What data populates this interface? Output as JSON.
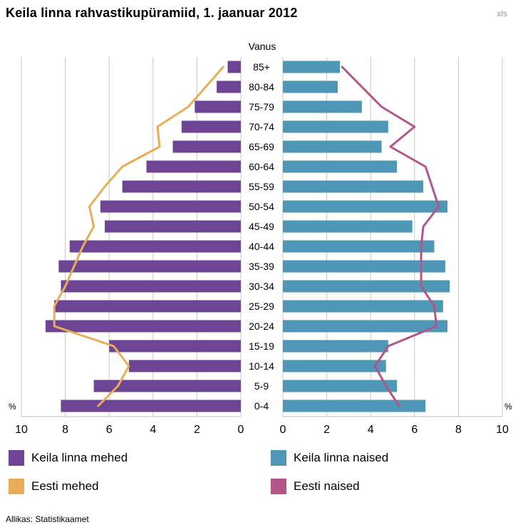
{
  "title": "Keila linna rahvastikupüramiid, 1. jaanuar 2012",
  "download_label": "xls",
  "source": "Allikas: Statistikaamet",
  "chart_data": {
    "type": "population-pyramid",
    "center_label": "Vanus",
    "unit_label": "%",
    "x_ticks": [
      10,
      8,
      6,
      4,
      2,
      0
    ],
    "xlim": [
      0,
      10
    ],
    "grid": true,
    "age_groups": [
      "85+",
      "80-84",
      "75-79",
      "70-74",
      "65-69",
      "60-64",
      "55-59",
      "50-54",
      "45-49",
      "40-44",
      "35-39",
      "30-34",
      "25-29",
      "20-24",
      "15-19",
      "10-14",
      "5-9",
      "0-4"
    ],
    "series": [
      {
        "name": "Keila linna mehed",
        "kind": "bar",
        "side": "left",
        "color": "#6e4595",
        "values": [
          0.6,
          1.1,
          2.1,
          2.7,
          3.1,
          4.3,
          5.4,
          6.4,
          6.2,
          7.8,
          8.3,
          8.2,
          8.5,
          8.9,
          6.0,
          5.1,
          6.7,
          8.2
        ]
      },
      {
        "name": "Keila linna naised",
        "kind": "bar",
        "side": "right",
        "color": "#4f97b6",
        "values": [
          2.6,
          2.5,
          3.6,
          4.8,
          4.5,
          5.2,
          6.4,
          7.5,
          5.9,
          6.9,
          7.4,
          7.6,
          7.3,
          7.5,
          4.8,
          4.7,
          5.2,
          6.5
        ]
      },
      {
        "name": "Eesti mehed",
        "kind": "line",
        "side": "left",
        "color": "#e9ad58",
        "values": [
          0.8,
          1.6,
          2.4,
          3.8,
          3.7,
          5.4,
          6.2,
          6.9,
          6.7,
          7.2,
          7.6,
          8.0,
          8.5,
          8.5,
          5.8,
          5.1,
          5.6,
          6.5
        ]
      },
      {
        "name": "Eesti naised",
        "kind": "line",
        "side": "right",
        "color": "#b2568a",
        "values": [
          2.7,
          3.6,
          4.5,
          6.0,
          4.9,
          6.5,
          6.8,
          7.1,
          6.4,
          6.3,
          6.3,
          6.3,
          6.9,
          7.0,
          4.8,
          4.2,
          4.7,
          5.3
        ]
      }
    ]
  },
  "legend": [
    {
      "label": "Keila linna mehed",
      "color": "#6e4595"
    },
    {
      "label": "Keila linna naised",
      "color": "#4f97b6"
    },
    {
      "label": "Eesti mehed",
      "color": "#e9ad58"
    },
    {
      "label": "Eesti naised",
      "color": "#b2568a"
    }
  ]
}
